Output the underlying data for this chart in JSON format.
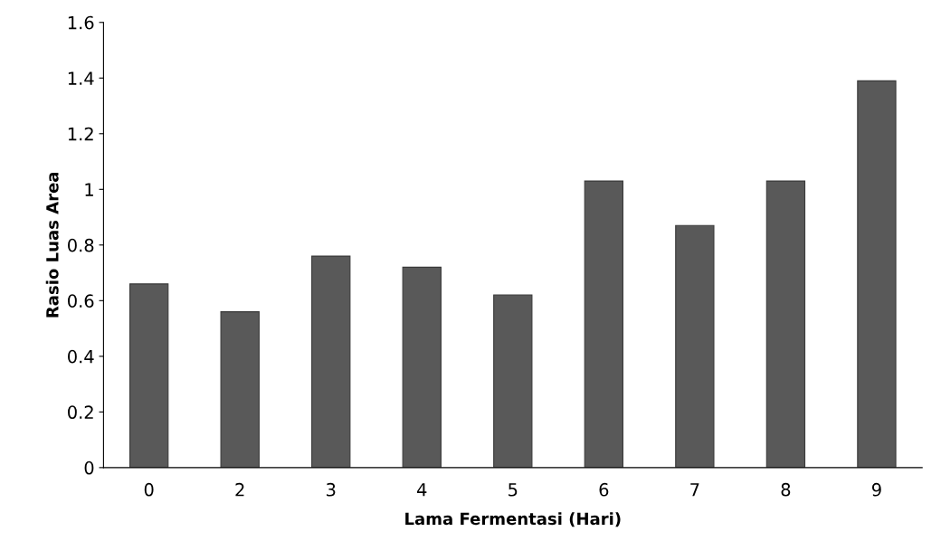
{
  "chart_data": {
    "type": "bar",
    "xlabel": "Lama Fermentasi (Hari)",
    "ylabel": "Rasio Luas Area",
    "categories": [
      "0",
      "2",
      "3",
      "4",
      "5",
      "6",
      "7",
      "8",
      "9"
    ],
    "values": [
      0.66,
      0.56,
      0.76,
      0.72,
      0.62,
      1.03,
      0.87,
      1.03,
      1.39
    ],
    "color": "#595959",
    "ylim": [
      0,
      1.6
    ],
    "yticks": [
      0,
      0.2,
      0.4,
      0.6,
      0.8,
      1,
      1.2,
      1.4,
      1.6
    ],
    "grid": false,
    "legend": false
  }
}
